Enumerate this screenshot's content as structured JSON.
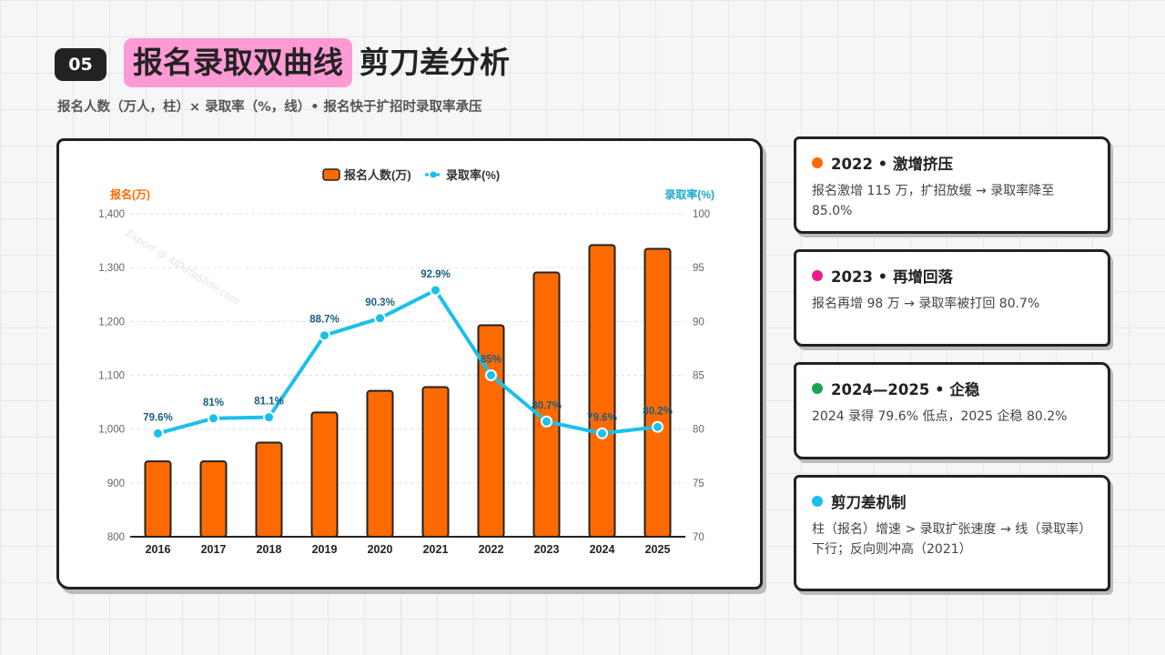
{
  "header": {
    "badge": "05",
    "title_highlight": "报名录取双曲线",
    "title_rest": "剪刀差分析",
    "subtitle": "报名人数（万人，柱）× 录取率（%，线）• 报名快于扩招时录取率承压"
  },
  "watermark": "Export @ AIDataSlide.com",
  "colors": {
    "bar": "#ff6a00",
    "line": "#19c0ec",
    "label": "#1a5f80",
    "left_axis_title": "#ff6a00",
    "right_axis_title": "#19a9d6"
  },
  "chart_data": {
    "type": "bar",
    "categories": [
      "2016",
      "2017",
      "2018",
      "2019",
      "2020",
      "2021",
      "2022",
      "2023",
      "2024",
      "2025"
    ],
    "series": [
      {
        "name": "报名人数(万)",
        "type": "bar",
        "axis": "left",
        "values": [
          940,
          940,
          975,
          1031,
          1071,
          1078,
          1193,
          1291,
          1342,
          1335
        ]
      },
      {
        "name": "录取率(%)",
        "type": "line",
        "axis": "right",
        "values": [
          79.6,
          81,
          81.1,
          88.7,
          90.3,
          92.9,
          85,
          80.7,
          79.6,
          80.2
        ],
        "labels": [
          "79.6%",
          "81%",
          "81.1%",
          "88.7%",
          "90.3%",
          "92.9%",
          "85%",
          "80.7%",
          "79.6%",
          "80.2%"
        ]
      }
    ],
    "left_axis": {
      "title": "报名(万)",
      "min": 800,
      "max": 1400,
      "ticks": [
        "800",
        "900",
        "1,000",
        "1,100",
        "1,200",
        "1,300",
        "1,400"
      ]
    },
    "right_axis": {
      "title": "录取率(%)",
      "min": 70,
      "max": 100,
      "ticks": [
        "70",
        "75",
        "80",
        "85",
        "90",
        "95",
        "100"
      ]
    },
    "legend_position": "top-center",
    "grid": true
  },
  "cards": [
    {
      "dot_color": "#ff6a00",
      "title": "2022 • 激增挤压",
      "text": "报名激增 115 万，扩招放缓 → 录取率降至 85.0%"
    },
    {
      "dot_color": "#ec1c8e",
      "title": "2023 • 再增回落",
      "text": "报名再增 98 万 → 录取率被打回 80.7%"
    },
    {
      "dot_color": "#17a352",
      "title": "2024—2025 • 企稳",
      "text": "2024 录得 79.6% 低点，2025 企稳 80.2%"
    },
    {
      "dot_color": "#19c0ec",
      "title": "剪刀差机制",
      "text": "柱（报名）增速 > 录取扩张速度 → 线（录取率）下行；反向则冲高（2021）"
    }
  ]
}
